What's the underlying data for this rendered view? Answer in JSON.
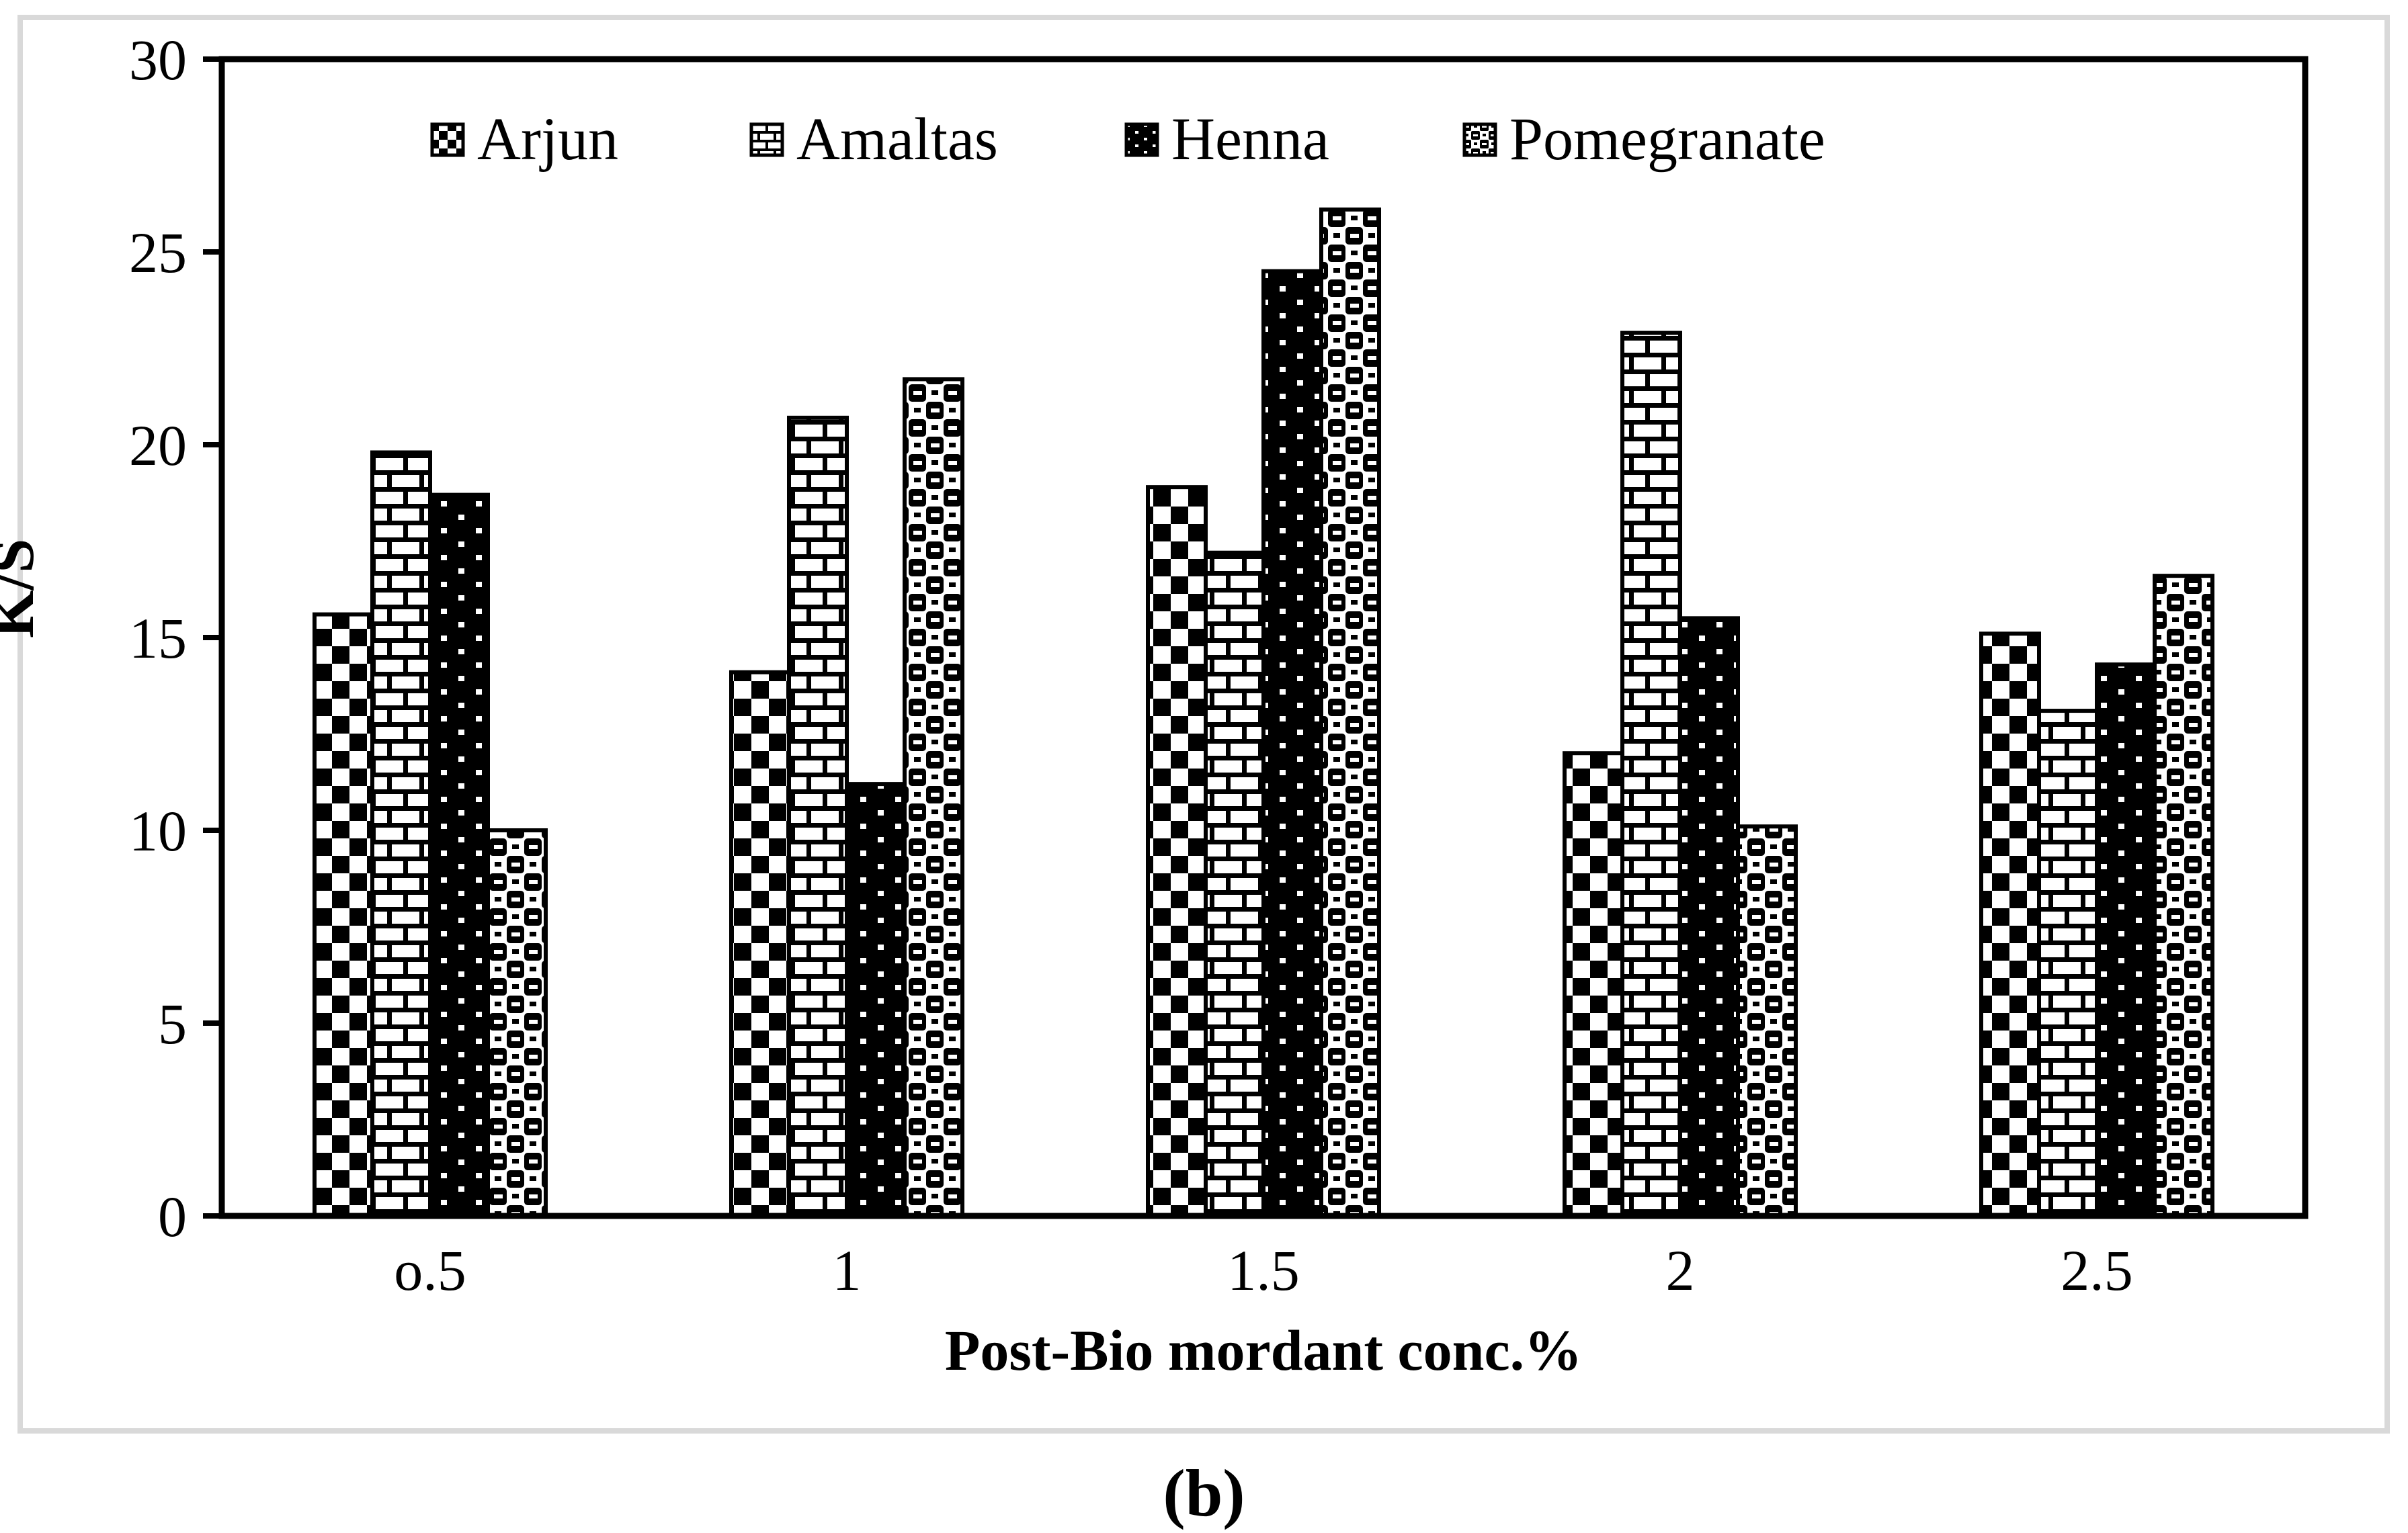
{
  "chart_data": {
    "type": "bar",
    "title": "",
    "xlabel": "Post-Bio mordant conc.%",
    "ylabel": "K/S",
    "caption": "(b)",
    "categories": [
      "o.5",
      "1",
      "1.5",
      "2",
      "2.5"
    ],
    "series": [
      {
        "name": "Arjun",
        "pattern": "checker",
        "values": [
          15.6,
          14.1,
          18.9,
          12.0,
          15.1
        ]
      },
      {
        "name": "Amaltas",
        "pattern": "brick",
        "values": [
          19.8,
          20.7,
          17.2,
          22.9,
          13.1
        ]
      },
      {
        "name": "Henna",
        "pattern": "dots",
        "values": [
          18.7,
          11.2,
          24.5,
          15.5,
          14.3
        ]
      },
      {
        "name": "Pomegranate",
        "pattern": "weave",
        "values": [
          10.0,
          21.7,
          26.1,
          10.1,
          16.6
        ]
      }
    ],
    "ylim": [
      0,
      30
    ],
    "yticks": [
      0,
      5,
      10,
      15,
      20,
      25,
      30
    ],
    "grid": false,
    "legend_position": "top-inside",
    "colors": {
      "ink": "#000000",
      "background": "#ffffff",
      "frame": "#d9d9d9"
    }
  }
}
